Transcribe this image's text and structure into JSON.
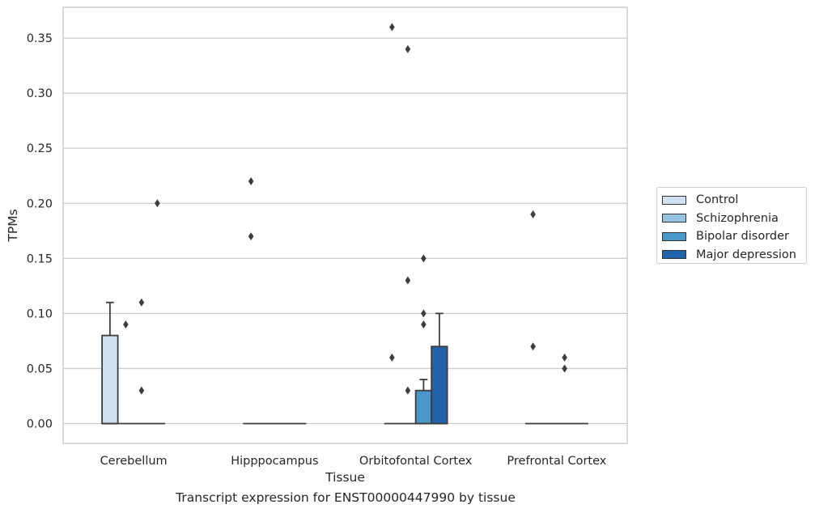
{
  "caption": "Transcript expression for ENST00000447990 by tissue",
  "chart_data": {
    "type": "box",
    "xlabel": "Tissue",
    "ylabel": "TPMs",
    "ylim": [
      -0.018,
      0.378
    ],
    "yticks": [
      0.0,
      0.05,
      0.1,
      0.15,
      0.2,
      0.25,
      0.3,
      0.35
    ],
    "ytick_labels": [
      "0.00",
      "0.05",
      "0.10",
      "0.15",
      "0.20",
      "0.25",
      "0.30",
      "0.35"
    ],
    "grid": "horizontal",
    "legend_position": "right",
    "categories": [
      "Cerebellum",
      "Hipppocampus",
      "Orbitofontal Cortex",
      "Prefrontal Cortex"
    ],
    "series": [
      {
        "name": "Control",
        "color": "#d0e1f2",
        "boxes": [
          {
            "q1": 0,
            "median": 0,
            "q3": 0.08,
            "whisker_low": 0,
            "whisker_high": 0.11,
            "outliers": []
          },
          {
            "q1": 0,
            "median": 0,
            "q3": 0,
            "whisker_low": 0,
            "whisker_high": 0,
            "outliers": [
              0.22,
              0.17
            ]
          },
          {
            "q1": 0,
            "median": 0,
            "q3": 0,
            "whisker_low": 0,
            "whisker_high": 0,
            "outliers": [
              0.36,
              0.06
            ]
          },
          {
            "q1": 0,
            "median": 0,
            "q3": 0,
            "whisker_low": 0,
            "whisker_high": 0,
            "outliers": [
              0.19,
              0.07
            ]
          }
        ]
      },
      {
        "name": "Schizophrenia",
        "color": "#94c4df",
        "boxes": [
          {
            "q1": 0,
            "median": 0,
            "q3": 0,
            "whisker_low": 0,
            "whisker_high": 0,
            "outliers": [
              0.09
            ]
          },
          {
            "q1": 0,
            "median": 0,
            "q3": 0,
            "whisker_low": 0,
            "whisker_high": 0,
            "outliers": []
          },
          {
            "q1": 0,
            "median": 0,
            "q3": 0,
            "whisker_low": 0,
            "whisker_high": 0,
            "outliers": [
              0.34,
              0.13,
              0.03
            ]
          },
          {
            "q1": 0,
            "median": 0,
            "q3": 0,
            "whisker_low": 0,
            "whisker_high": 0,
            "outliers": []
          }
        ]
      },
      {
        "name": "Bipolar disorder",
        "color": "#4a98c9",
        "boxes": [
          {
            "q1": 0,
            "median": 0,
            "q3": 0,
            "whisker_low": 0,
            "whisker_high": 0,
            "outliers": [
              0.11,
              0.03
            ]
          },
          {
            "q1": 0,
            "median": 0,
            "q3": 0,
            "whisker_low": 0,
            "whisker_high": 0,
            "outliers": []
          },
          {
            "q1": 0,
            "median": 0,
            "q3": 0.03,
            "whisker_low": 0,
            "whisker_high": 0.04,
            "outliers": [
              0.15,
              0.1,
              0.09
            ]
          },
          {
            "q1": 0,
            "median": 0,
            "q3": 0,
            "whisker_low": 0,
            "whisker_high": 0,
            "outliers": [
              0.06,
              0.05
            ]
          }
        ]
      },
      {
        "name": "Major depression",
        "color": "#2164ab",
        "boxes": [
          {
            "q1": 0,
            "median": 0,
            "q3": 0,
            "whisker_low": 0,
            "whisker_high": 0,
            "outliers": [
              0.2
            ]
          },
          {
            "q1": 0,
            "median": 0,
            "q3": 0,
            "whisker_low": 0,
            "whisker_high": 0,
            "outliers": []
          },
          {
            "q1": 0,
            "median": 0,
            "q3": 0.07,
            "whisker_low": 0,
            "whisker_high": 0.1,
            "outliers": []
          },
          {
            "q1": 0,
            "median": 0,
            "q3": 0,
            "whisker_low": 0,
            "whisker_high": 0,
            "outliers": []
          }
        ]
      }
    ]
  }
}
